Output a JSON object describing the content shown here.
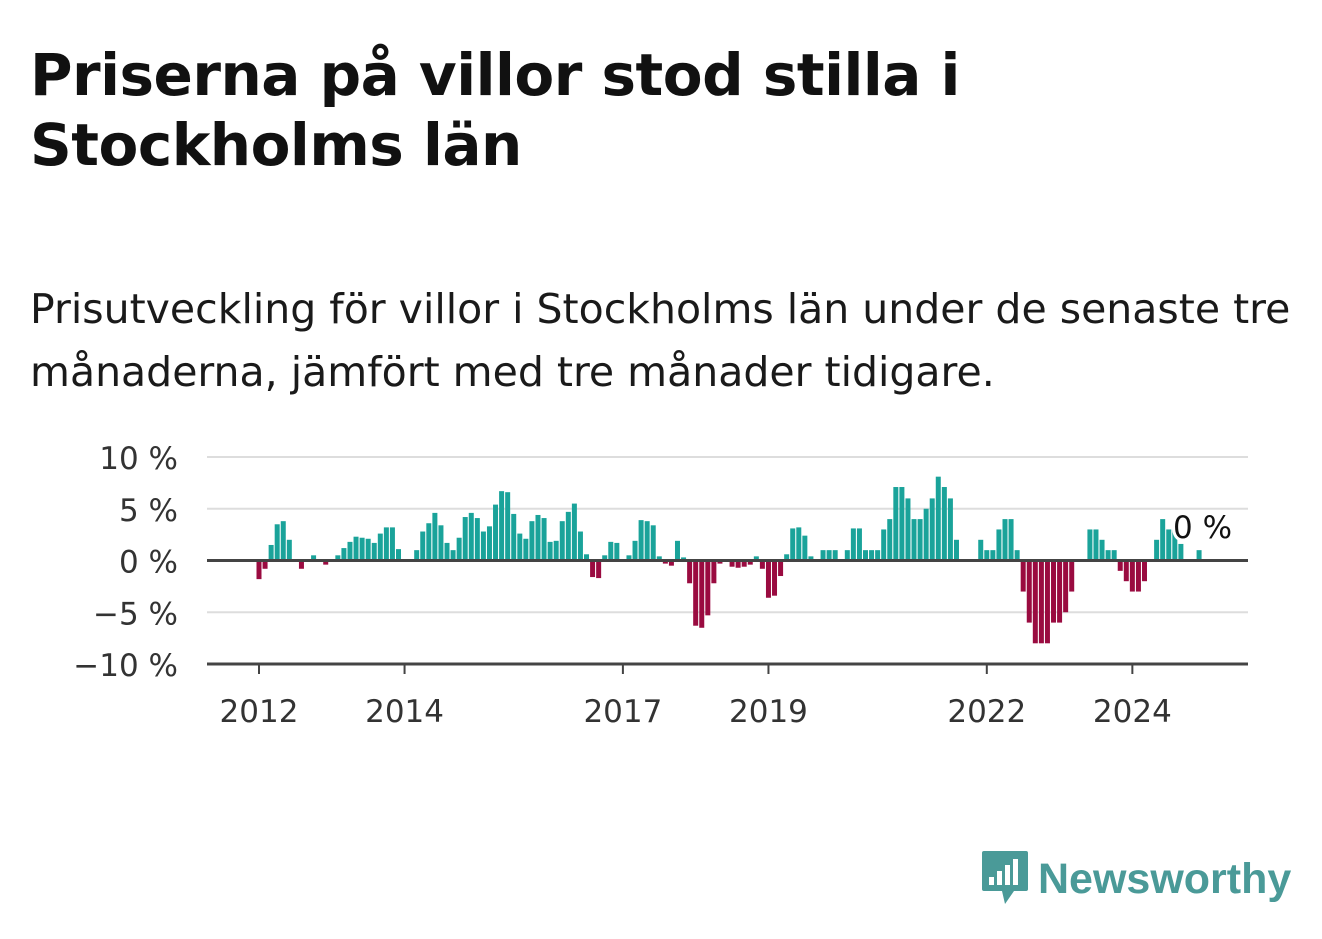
{
  "header": {
    "title": "Priserna på villor stod stilla i Stockholms län",
    "subtitle": "Prisutveckling för villor i Stockholms län under de senaste tre månaderna, jämfört med tre månader tidigare."
  },
  "brand": {
    "name": "Newsworthy",
    "icon": "newsworthy-bar-chart-bubble-icon",
    "color": "#4a9a98"
  },
  "colors": {
    "positive": "#1aa39a",
    "negative": "#9a0b40",
    "grid": "#dddddd",
    "axis": "#444444"
  },
  "chart_data": {
    "type": "bar",
    "title": "",
    "xlabel": "",
    "ylabel": "",
    "ylim": [
      -10,
      10
    ],
    "yticks": [
      10,
      5,
      0,
      -5,
      -10
    ],
    "ytick_labels": [
      "10 %",
      "5 %",
      "0 %",
      "−5 %",
      "−10 %"
    ],
    "xticks": [
      {
        "label": "2012",
        "month": "2012-01"
      },
      {
        "label": "2014",
        "month": "2014-01"
      },
      {
        "label": "2017",
        "month": "2017-01"
      },
      {
        "label": "2019",
        "month": "2019-01"
      },
      {
        "label": "2022",
        "month": "2022-01"
      },
      {
        "label": "2024",
        "month": "2024-01"
      }
    ],
    "grid": true,
    "annotation": {
      "text": "0 %",
      "month": "2024-11"
    },
    "series": [
      {
        "start_month": "2011-09",
        "values": [
          null,
          null,
          null,
          null,
          -1.8,
          -0.8,
          1.5,
          3.5,
          3.8,
          2.0,
          0.1,
          -0.8,
          0.1,
          0.5,
          0.1,
          -0.4,
          0.1,
          0.5,
          1.2,
          1.8,
          2.3,
          2.2,
          2.1,
          1.7,
          2.6,
          3.2,
          3.2,
          1.1,
          0.1,
          0.1,
          1.0,
          2.8,
          3.6,
          4.6,
          3.4,
          1.7,
          1.0,
          2.2,
          4.2,
          4.6,
          4.1,
          2.8,
          3.3,
          5.4,
          6.7,
          6.6,
          4.5,
          2.6,
          2.1,
          3.8,
          4.4,
          4.1,
          1.8,
          1.9,
          3.8,
          4.7,
          5.5,
          2.8,
          0.6,
          -1.6,
          -1.7,
          0.5,
          1.8,
          1.7,
          0.1,
          0.5,
          1.9,
          3.9,
          3.8,
          3.4,
          0.4,
          -0.3,
          -0.5,
          1.9,
          0.3,
          -2.2,
          -6.3,
          -6.5,
          -5.3,
          -2.2,
          -0.3,
          0.1,
          -0.6,
          -0.7,
          -0.6,
          -0.4,
          0.4,
          -0.8,
          -3.6,
          -3.4,
          -1.5,
          0.6,
          3.1,
          3.2,
          2.4,
          0.4,
          0.1,
          1.0,
          1.0,
          1.0,
          0.1,
          1.0,
          3.1,
          3.1,
          1.0,
          1.0,
          1.0,
          3.0,
          4.0,
          7.1,
          7.1,
          6.0,
          4.0,
          4.0,
          5.0,
          6.0,
          8.1,
          7.1,
          6.0,
          2.0,
          null,
          null,
          null,
          2.0,
          1.0,
          1.0,
          3.0,
          4.0,
          4.0,
          1.0,
          -3.0,
          -6.0,
          -8.0,
          -8.0,
          -8.0,
          -6.0,
          -6.0,
          -5.0,
          -3.0,
          null,
          null,
          3.0,
          3.0,
          2.0,
          1.0,
          1.0,
          -1.0,
          -2.0,
          -3.0,
          -3.0,
          -2.0,
          null,
          2.0,
          4.0,
          3.0,
          3.0,
          1.6,
          0.1,
          null,
          1.0
        ]
      }
    ]
  }
}
